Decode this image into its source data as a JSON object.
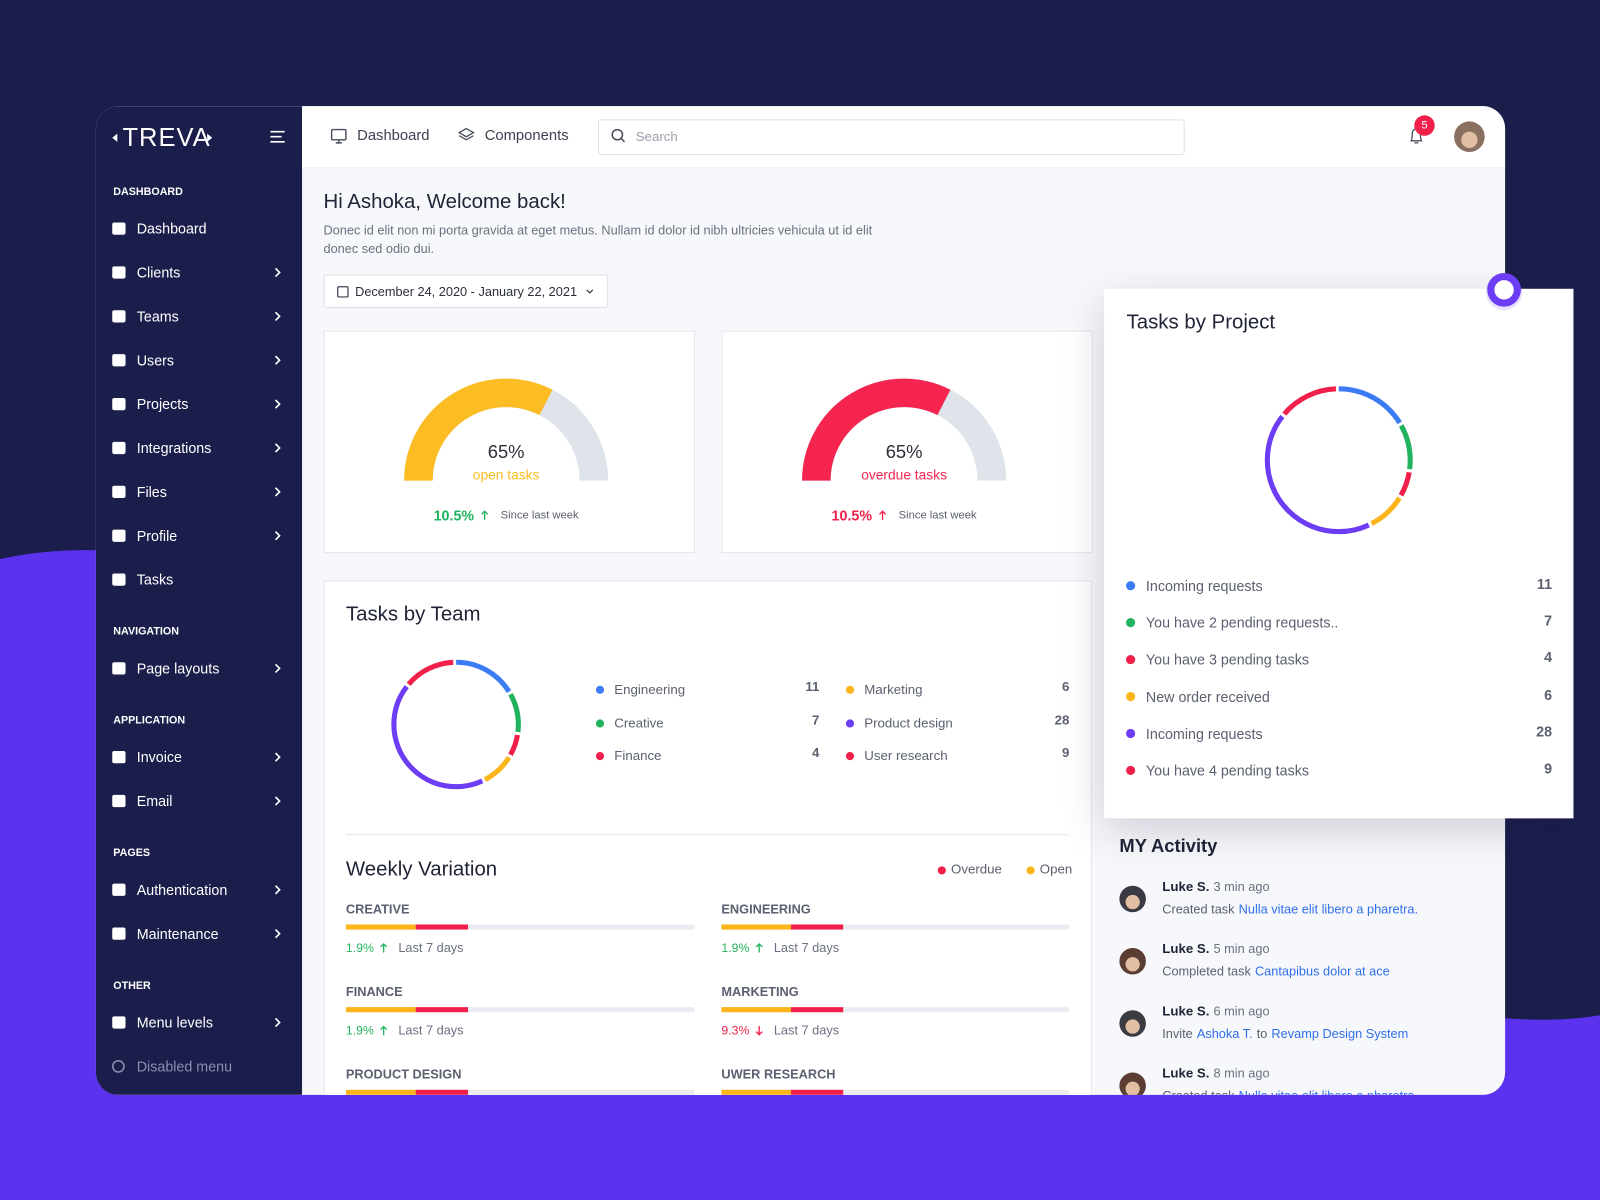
{
  "brand": "TREVA",
  "sidebar": {
    "sections": [
      {
        "title": "DASHBOARD",
        "items": [
          {
            "label": "Dashboard",
            "submenu": false
          },
          {
            "label": "Clients",
            "submenu": true
          },
          {
            "label": "Teams",
            "submenu": true
          },
          {
            "label": "Users",
            "submenu": true
          },
          {
            "label": "Projects",
            "submenu": true
          },
          {
            "label": "Integrations",
            "submenu": true
          },
          {
            "label": "Files",
            "submenu": true
          },
          {
            "label": "Profile",
            "submenu": true
          },
          {
            "label": "Tasks",
            "submenu": false
          }
        ]
      },
      {
        "title": "NAVIGATION",
        "items": [
          {
            "label": "Page layouts",
            "submenu": true
          }
        ]
      },
      {
        "title": "APPLICATION",
        "items": [
          {
            "label": "Invoice",
            "submenu": true
          },
          {
            "label": "Email",
            "submenu": true
          }
        ]
      },
      {
        "title": "PAGES",
        "items": [
          {
            "label": "Authentication",
            "submenu": true
          },
          {
            "label": "Maintenance",
            "submenu": true
          }
        ]
      },
      {
        "title": "OTHER",
        "items": [
          {
            "label": "Menu levels",
            "submenu": true
          },
          {
            "label": "Disabled menu",
            "submenu": false,
            "disabled": true
          }
        ]
      }
    ]
  },
  "topbar": {
    "nav": [
      "Dashboard",
      "Components"
    ],
    "search": "Search",
    "notifications": 5
  },
  "welcome": {
    "title": "Hi Ashoka, Welcome back!",
    "text": "Donec id elit non mi porta gravida at eget metus. Nullam id dolor id nibh ultricies vehicula ut id elit donec sed odio dui.",
    "date_range": "December 24, 2020 - January 22, 2021"
  },
  "gauges": [
    {
      "value": 65,
      "max": 100,
      "label": "65%",
      "caption": "open tasks",
      "change": "10.5%",
      "since": "Since last week",
      "color": "#fbbd23"
    },
    {
      "value": 65,
      "max": 100,
      "label": "65%",
      "caption": "overdue tasks",
      "change": "10.5%",
      "since": "Since last week",
      "color": "#f5254f"
    }
  ],
  "tasks_by_team": {
    "title": "Tasks by Team",
    "items": [
      {
        "name": "Engineering",
        "value": 11,
        "color": "#3b7cf5"
      },
      {
        "name": "Creative",
        "value": 7,
        "color": "#22b35e"
      },
      {
        "name": "Finance",
        "value": 4,
        "color": "#f0204a"
      },
      {
        "name": "Marketing",
        "value": 6,
        "color": "#fbb41a"
      },
      {
        "name": "Product design",
        "value": 28,
        "color": "#6d3df5"
      },
      {
        "name": "User research",
        "value": 9,
        "color": "#f0204a"
      }
    ]
  },
  "weekly_variation": {
    "title": "Weekly Variation",
    "max": 100,
    "series": [
      {
        "name": "Overdue",
        "color": "#f0204a"
      },
      {
        "name": "Open",
        "color": "#fbb41a"
      }
    ],
    "items": [
      {
        "name": "CREATIVE",
        "open": 20,
        "overdue": 15,
        "change": "1.9%",
        "direction": "up",
        "period": "Last 7 days"
      },
      {
        "name": "ENGINEERING",
        "open": 20,
        "overdue": 15,
        "change": "1.9%",
        "direction": "up",
        "period": "Last 7 days"
      },
      {
        "name": "FINANCE",
        "open": 20,
        "overdue": 15,
        "change": "1.9%",
        "direction": "up",
        "period": "Last 7 days"
      },
      {
        "name": "MARKETING",
        "open": 20,
        "overdue": 15,
        "change": "9.3%",
        "direction": "down",
        "period": "Last 7 days"
      },
      {
        "name": "PRODUCT DESIGN",
        "open": 20,
        "overdue": 15
      },
      {
        "name": "UWER RESEARCH",
        "open": 20,
        "overdue": 15
      }
    ]
  },
  "tasks_by_project": {
    "title": "Tasks by Project",
    "items": [
      {
        "name": "Incoming requests",
        "value": 11,
        "color": "#3b7cf5"
      },
      {
        "name": "You have 2 pending requests..",
        "value": 7,
        "color": "#22b35e"
      },
      {
        "name": "You have 3 pending tasks",
        "value": 4,
        "color": "#f0204a"
      },
      {
        "name": "New order received",
        "value": 6,
        "color": "#fbb41a"
      },
      {
        "name": "Incoming requests",
        "value": 28,
        "color": "#6d3df5"
      },
      {
        "name": "You have 4 pending tasks",
        "value": 9,
        "color": "#f0204a"
      }
    ]
  },
  "activity": {
    "title": "MY Activity",
    "items": [
      {
        "name": "Luke S.",
        "time": "3 min ago",
        "parts": [
          {
            "text": "Created task",
            "link": false
          },
          {
            "text": "Nulla vitae elit libero a pharetra.",
            "link": true
          }
        ]
      },
      {
        "name": "Luke S.",
        "time": "5 min ago",
        "parts": [
          {
            "text": "Completed task",
            "link": false
          },
          {
            "text": "Cantapibus dolor at ace",
            "link": true
          }
        ]
      },
      {
        "name": "Luke S.",
        "time": "6 min ago",
        "parts": [
          {
            "text": "Invite",
            "link": false
          },
          {
            "text": "Ashoka T.",
            "link": true
          },
          {
            "text": "to",
            "link": false
          },
          {
            "text": "Revamp Design System",
            "link": true
          }
        ]
      },
      {
        "name": "Luke S.",
        "time": "8 min ago",
        "parts": [
          {
            "text": "Created task",
            "link": false
          },
          {
            "text": "Nulla vitae elit libero a pharetra.",
            "link": true
          }
        ]
      }
    ]
  }
}
